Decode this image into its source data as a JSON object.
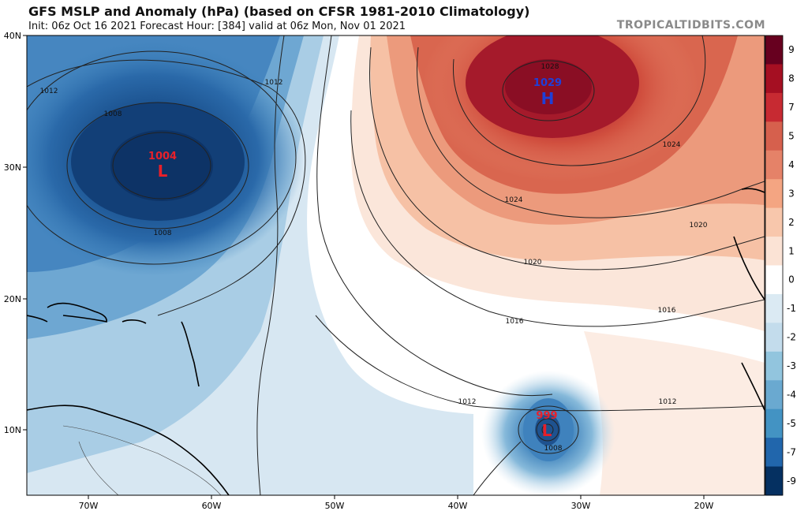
{
  "header": {
    "title": "GFS MSLP and Anomaly (hPa) (based on CFSR 1981-2010 Climatology)",
    "subtitle": "Init: 06z Oct 16 2021   Forecast Hour: [384]   valid at 06z Mon, Nov 01 2021",
    "brand": "TROPICALTIDBITS.COM"
  },
  "map": {
    "lat_labels": [
      "40N",
      "30N",
      "20N",
      "10N"
    ],
    "lon_labels": [
      "70W",
      "60W",
      "50W",
      "40W",
      "30W",
      "20W"
    ],
    "pressure_centers": [
      {
        "type": "L",
        "value": "1004",
        "value_color": "#e8202a",
        "letter_color": "#e8202a"
      },
      {
        "type": "H",
        "value": "1029",
        "value_color": "#1f3fd8",
        "letter_color": "#1f3fd8"
      },
      {
        "type": "L",
        "value": "999",
        "value_color": "#e8202a",
        "letter_color": "#e8202a"
      }
    ],
    "contour_labels": [
      "1012",
      "1012",
      "1008",
      "1008",
      "1028",
      "1024",
      "1024",
      "1020",
      "1020",
      "1016",
      "1016",
      "1012",
      "1012",
      "1008"
    ]
  },
  "colorbar": {
    "labels": [
      "9",
      "8",
      "7",
      "5",
      "4",
      "3",
      "2",
      "1",
      "0",
      "-1",
      "-2",
      "-3",
      "-4",
      "-5",
      "-7",
      "-9"
    ],
    "colors": [
      "#67001f",
      "#a50f22",
      "#c72a32",
      "#d6604d",
      "#e58268",
      "#f4a582",
      "#f8c7ac",
      "#fbe3d5",
      "#ffffff",
      "#dbeaf3",
      "#c3dcec",
      "#92c5de",
      "#6aa9d0",
      "#4393c3",
      "#2166ac",
      "#053061"
    ]
  }
}
